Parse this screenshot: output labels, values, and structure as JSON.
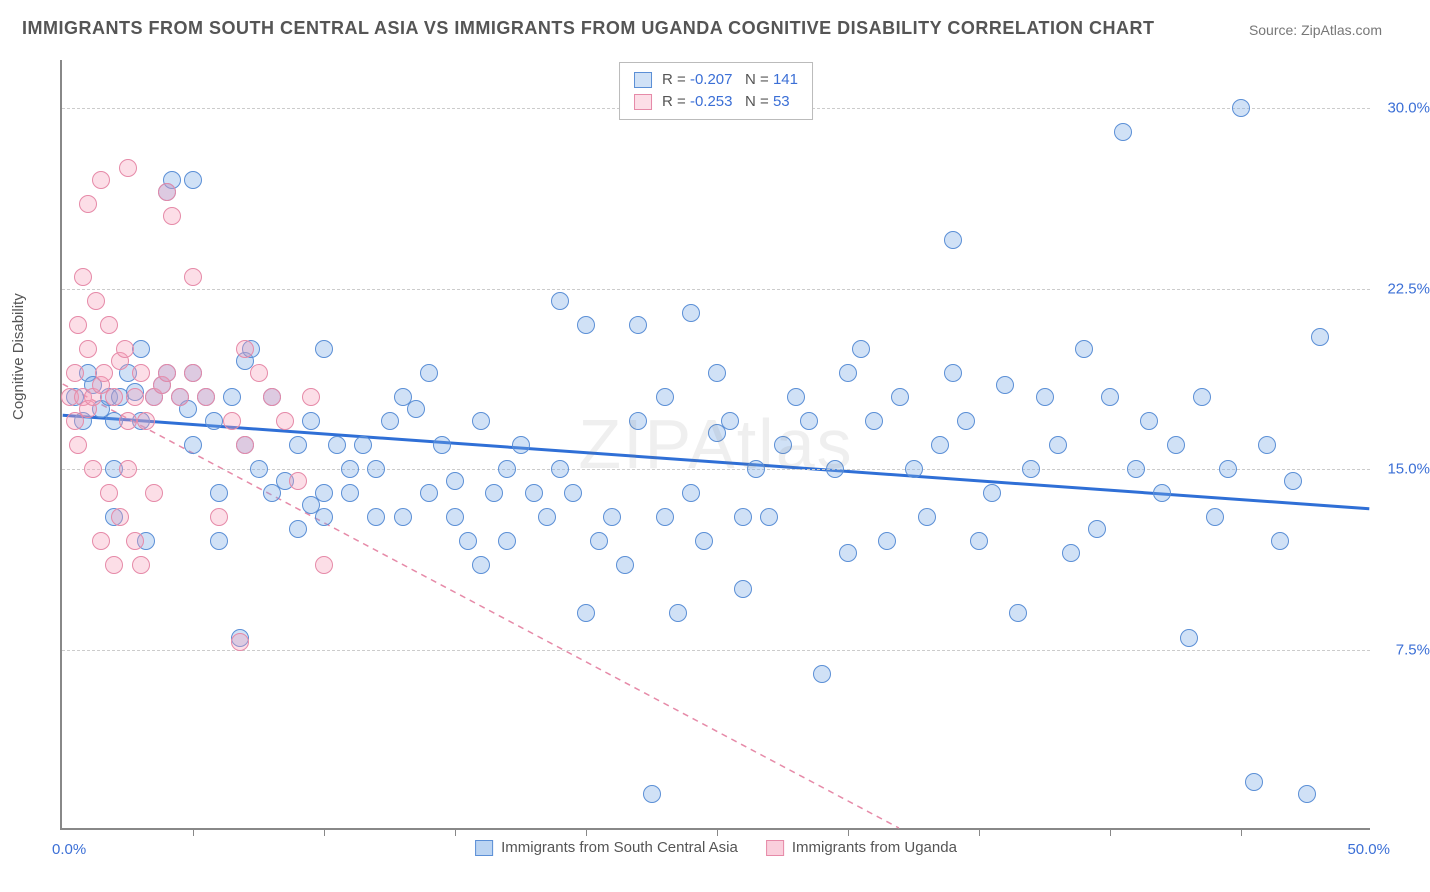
{
  "title": "IMMIGRANTS FROM SOUTH CENTRAL ASIA VS IMMIGRANTS FROM UGANDA COGNITIVE DISABILITY CORRELATION CHART",
  "source_label": "Source:",
  "source_value": "ZipAtlas.com",
  "ylabel": "Cognitive Disability",
  "watermark": "ZIPAtlas",
  "xlim": [
    0,
    50
  ],
  "ylim": [
    0,
    32
  ],
  "xlabel_start": "0.0%",
  "xlabel_end": "50.0%",
  "xtick_positions": [
    5,
    10,
    15,
    20,
    25,
    30,
    35,
    40,
    45
  ],
  "yticks": [
    {
      "v": 7.5,
      "label": "7.5%"
    },
    {
      "v": 15.0,
      "label": "15.0%"
    },
    {
      "v": 22.5,
      "label": "22.5%"
    },
    {
      "v": 30.0,
      "label": "30.0%"
    }
  ],
  "series": [
    {
      "name": "Immigrants from South Central Asia",
      "color_fill": "rgba(120,170,230,0.35)",
      "color_stroke": "#5b8fd6",
      "marker_radius": 9,
      "R_label": "R =",
      "R_value": "-0.207",
      "N_label": "N =",
      "N_value": "141",
      "trend": {
        "x1": 0,
        "y1": 17.2,
        "x2": 50,
        "y2": 13.3,
        "stroke": "#2f6fd6",
        "width": 3,
        "dash": "none"
      },
      "points": [
        [
          0.5,
          18
        ],
        [
          0.8,
          17
        ],
        [
          1,
          19
        ],
        [
          1.2,
          18.5
        ],
        [
          1.5,
          17.5
        ],
        [
          1.8,
          18
        ],
        [
          2,
          13
        ],
        [
          2,
          15
        ],
        [
          2,
          17
        ],
        [
          2.2,
          18
        ],
        [
          2.5,
          19
        ],
        [
          2.8,
          18.2
        ],
        [
          3,
          17
        ],
        [
          3,
          20
        ],
        [
          3.2,
          12
        ],
        [
          3.5,
          18
        ],
        [
          3.8,
          18.5
        ],
        [
          4,
          19
        ],
        [
          4,
          26.5
        ],
        [
          4.2,
          27
        ],
        [
          4.5,
          18
        ],
        [
          4.8,
          17.5
        ],
        [
          5,
          19
        ],
        [
          5,
          16
        ],
        [
          5,
          27
        ],
        [
          5.5,
          18
        ],
        [
          5.8,
          17
        ],
        [
          6,
          14
        ],
        [
          6,
          12
        ],
        [
          6.5,
          18
        ],
        [
          6.8,
          8
        ],
        [
          7,
          16
        ],
        [
          7,
          19.5
        ],
        [
          7.2,
          20
        ],
        [
          7.5,
          15
        ],
        [
          8,
          14
        ],
        [
          8,
          18
        ],
        [
          8.5,
          14.5
        ],
        [
          9,
          16
        ],
        [
          9,
          12.5
        ],
        [
          9.5,
          17
        ],
        [
          9.5,
          13.5
        ],
        [
          10,
          13
        ],
        [
          10,
          14
        ],
        [
          10,
          20
        ],
        [
          10.5,
          16
        ],
        [
          11,
          15
        ],
        [
          11,
          14
        ],
        [
          11.5,
          16
        ],
        [
          12,
          13
        ],
        [
          12,
          15
        ],
        [
          12.5,
          17
        ],
        [
          13,
          18
        ],
        [
          13,
          13
        ],
        [
          13.5,
          17.5
        ],
        [
          14,
          19
        ],
        [
          14,
          14
        ],
        [
          14.5,
          16
        ],
        [
          15,
          13
        ],
        [
          15,
          14.5
        ],
        [
          15.5,
          12
        ],
        [
          16,
          17
        ],
        [
          16,
          11
        ],
        [
          16.5,
          14
        ],
        [
          17,
          15
        ],
        [
          17,
          12
        ],
        [
          17.5,
          16
        ],
        [
          18,
          14
        ],
        [
          18.5,
          13
        ],
        [
          19,
          15
        ],
        [
          19,
          22
        ],
        [
          19.5,
          14
        ],
        [
          20,
          21
        ],
        [
          20,
          9
        ],
        [
          20.5,
          12
        ],
        [
          21,
          13
        ],
        [
          21.5,
          11
        ],
        [
          22,
          21
        ],
        [
          22,
          17
        ],
        [
          22.5,
          1.5
        ],
        [
          23,
          18
        ],
        [
          23,
          13
        ],
        [
          23.5,
          9
        ],
        [
          24,
          21.5
        ],
        [
          24,
          14
        ],
        [
          24.5,
          12
        ],
        [
          25,
          19
        ],
        [
          25,
          16.5
        ],
        [
          25.5,
          17
        ],
        [
          26,
          13
        ],
        [
          26,
          10
        ],
        [
          26.5,
          15
        ],
        [
          27,
          13
        ],
        [
          27.5,
          16
        ],
        [
          28,
          18
        ],
        [
          28.5,
          17
        ],
        [
          29,
          6.5
        ],
        [
          29.5,
          15
        ],
        [
          30,
          19
        ],
        [
          30,
          11.5
        ],
        [
          30.5,
          20
        ],
        [
          31,
          17
        ],
        [
          31.5,
          12
        ],
        [
          32,
          18
        ],
        [
          32.5,
          15
        ],
        [
          33,
          13
        ],
        [
          33.5,
          16
        ],
        [
          34,
          24.5
        ],
        [
          34,
          19
        ],
        [
          34.5,
          17
        ],
        [
          35,
          12
        ],
        [
          35.5,
          14
        ],
        [
          36,
          18.5
        ],
        [
          36.5,
          9
        ],
        [
          37,
          15
        ],
        [
          37.5,
          18
        ],
        [
          38,
          16
        ],
        [
          38.5,
          11.5
        ],
        [
          39,
          20
        ],
        [
          39.5,
          12.5
        ],
        [
          40,
          18
        ],
        [
          40.5,
          29
        ],
        [
          41,
          15
        ],
        [
          41.5,
          17
        ],
        [
          42,
          14
        ],
        [
          42.5,
          16
        ],
        [
          43,
          8
        ],
        [
          43.5,
          18
        ],
        [
          44,
          13
        ],
        [
          44.5,
          15
        ],
        [
          45,
          30
        ],
        [
          45.5,
          2
        ],
        [
          46,
          16
        ],
        [
          46.5,
          12
        ],
        [
          47,
          14.5
        ],
        [
          47.5,
          1.5
        ],
        [
          48,
          20.5
        ]
      ]
    },
    {
      "name": "Immigrants from Uganda",
      "color_fill": "rgba(245,160,185,0.35)",
      "color_stroke": "#e68aa8",
      "marker_radius": 9,
      "R_label": "R =",
      "R_value": "-0.253",
      "N_label": "N =",
      "N_value": "53",
      "trend": {
        "x1": 0,
        "y1": 18.5,
        "x2": 32,
        "y2": 0,
        "stroke": "#e68aa8",
        "width": 1.5,
        "dash": "6,5"
      },
      "points": [
        [
          0.3,
          18
        ],
        [
          0.5,
          17
        ],
        [
          0.5,
          19
        ],
        [
          0.6,
          21
        ],
        [
          0.6,
          16
        ],
        [
          0.8,
          18
        ],
        [
          0.8,
          23
        ],
        [
          1,
          17.5
        ],
        [
          1,
          20
        ],
        [
          1,
          26
        ],
        [
          1.2,
          18
        ],
        [
          1.2,
          15
        ],
        [
          1.3,
          22
        ],
        [
          1.5,
          18.5
        ],
        [
          1.5,
          12
        ],
        [
          1.5,
          27
        ],
        [
          1.6,
          19
        ],
        [
          1.8,
          21
        ],
        [
          1.8,
          14
        ],
        [
          2,
          18
        ],
        [
          2,
          11
        ],
        [
          2.2,
          13
        ],
        [
          2.2,
          19.5
        ],
        [
          2.4,
          20
        ],
        [
          2.5,
          17
        ],
        [
          2.5,
          15
        ],
        [
          2.8,
          18
        ],
        [
          2.8,
          12
        ],
        [
          3,
          19
        ],
        [
          3,
          11
        ],
        [
          3.2,
          17
        ],
        [
          3.5,
          14
        ],
        [
          3.5,
          18
        ],
        [
          3.8,
          18.5
        ],
        [
          4,
          19
        ],
        [
          4,
          26.5
        ],
        [
          4.2,
          25.5
        ],
        [
          4.5,
          18
        ],
        [
          5,
          19
        ],
        [
          5,
          23
        ],
        [
          5.5,
          18
        ],
        [
          6,
          13
        ],
        [
          6.5,
          17
        ],
        [
          7,
          16
        ],
        [
          7,
          20
        ],
        [
          7.5,
          19
        ],
        [
          8,
          18
        ],
        [
          8.5,
          17
        ],
        [
          9,
          14.5
        ],
        [
          9.5,
          18
        ],
        [
          10,
          11
        ],
        [
          6.8,
          7.8
        ],
        [
          2.5,
          27.5
        ]
      ]
    }
  ],
  "legend_bottom": [
    {
      "swatch_fill": "rgba(120,170,230,0.5)",
      "swatch_stroke": "#5b8fd6",
      "label": "Immigrants from South Central Asia"
    },
    {
      "swatch_fill": "rgba(245,160,185,0.5)",
      "swatch_stroke": "#e68aa8",
      "label": "Immigrants from Uganda"
    }
  ]
}
